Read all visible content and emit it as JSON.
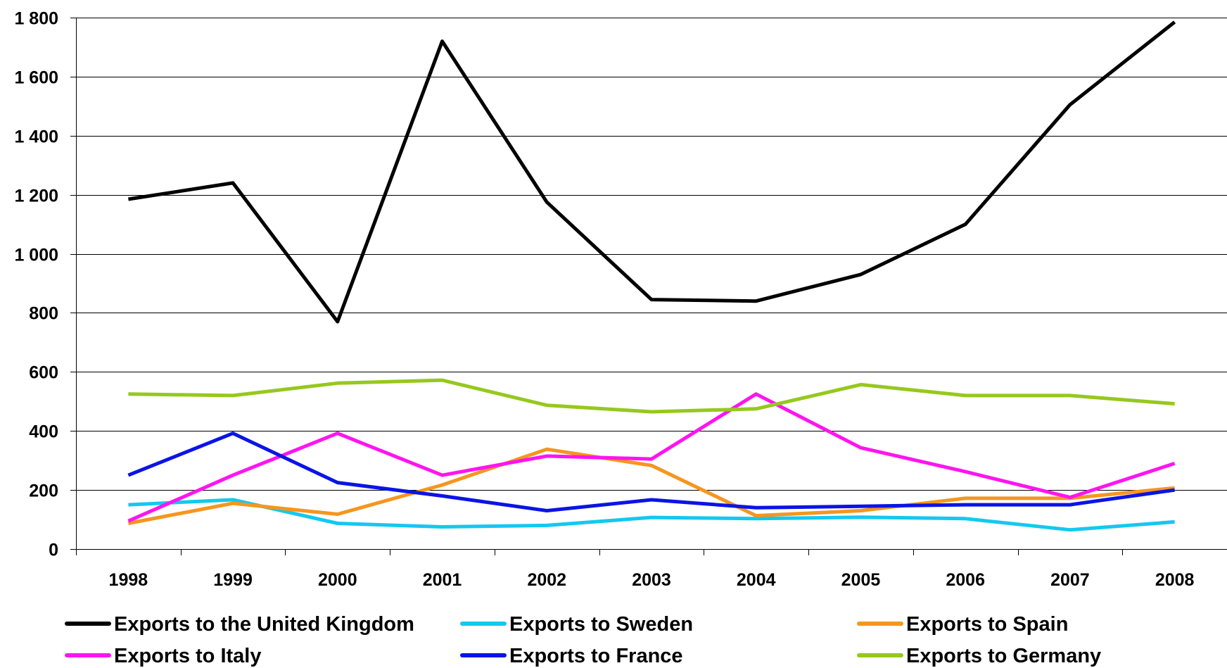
{
  "chart_data": {
    "type": "line",
    "title": "",
    "xlabel": "",
    "ylabel": "",
    "categories": [
      "1998",
      "1999",
      "2000",
      "2001",
      "2002",
      "2003",
      "2004",
      "2005",
      "2006",
      "2007",
      "2008"
    ],
    "ylim": [
      0,
      1800
    ],
    "yticks": [
      0,
      200,
      400,
      600,
      800,
      1000,
      1200,
      1400,
      1600,
      1800
    ],
    "ytick_labels": [
      "0",
      "200",
      "400",
      "600",
      "800",
      "1 000",
      "1 200",
      "1 400",
      "1 600",
      "1 800"
    ],
    "grid": "horizontal",
    "legend_position": "bottom",
    "series": [
      {
        "name": "Exports to the United Kingdom",
        "color": "#000000",
        "values": [
          1185,
          1240,
          770,
          1720,
          1175,
          845,
          840,
          930,
          1100,
          1505,
          1785
        ]
      },
      {
        "name": "Exports to Sweden",
        "color": "#14C8F0",
        "values": [
          150,
          167,
          87,
          75,
          80,
          107,
          103,
          108,
          103,
          65,
          92
        ]
      },
      {
        "name": "Exports to Spain",
        "color": "#F5961E",
        "values": [
          87,
          155,
          118,
          217,
          338,
          283,
          113,
          130,
          172,
          172,
          207
        ]
      },
      {
        "name": "Exports to Italy",
        "color": "#FF14F0",
        "values": [
          95,
          250,
          392,
          250,
          315,
          305,
          525,
          343,
          262,
          175,
          290
        ]
      },
      {
        "name": "Exports to France",
        "color": "#0A14E6",
        "values": [
          250,
          392,
          225,
          180,
          130,
          167,
          140,
          145,
          150,
          150,
          200
        ]
      },
      {
        "name": "Exports to Germany",
        "color": "#96C81E",
        "values": [
          525,
          520,
          562,
          572,
          487,
          465,
          475,
          557,
          520,
          520,
          492
        ]
      }
    ]
  }
}
